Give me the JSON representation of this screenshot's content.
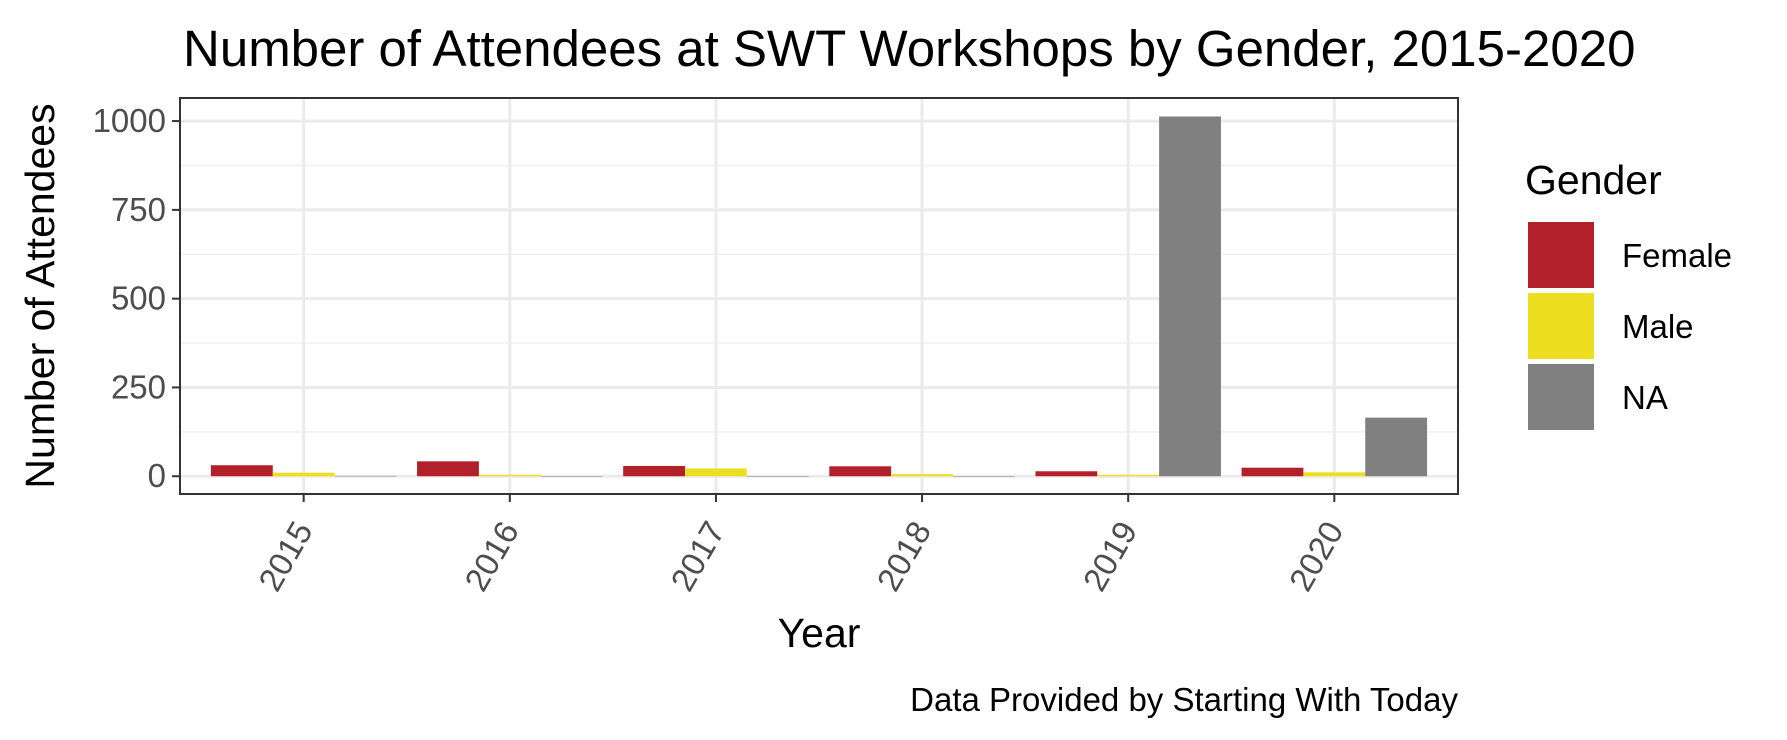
{
  "chart_data": {
    "type": "bar",
    "title": "Number of Attendees at SWT Workshops by Gender, 2015-2020",
    "xlabel": "Year",
    "ylabel": "Number of Attendees",
    "caption": "Data Provided by Starting With Today",
    "categories": [
      "2015",
      "2016",
      "2017",
      "2018",
      "2019",
      "2020"
    ],
    "series": [
      {
        "name": "Female",
        "color": "#B22029",
        "values": [
          31,
          42,
          29,
          28,
          14,
          24
        ]
      },
      {
        "name": "Male",
        "color": "#EDDF20",
        "values": [
          10,
          4,
          22,
          6,
          4,
          11
        ]
      },
      {
        "name": "NA",
        "color": "#808080",
        "values": [
          1,
          0,
          0,
          0,
          1013,
          165
        ]
      }
    ],
    "ylim": [
      -50,
      1065
    ],
    "yticks": [
      0,
      250,
      500,
      750,
      1000
    ],
    "yticklabels": [
      "0",
      "250",
      "500",
      "750",
      "1000"
    ],
    "legend": {
      "title": "Gender",
      "position": "right"
    },
    "grid": true
  }
}
